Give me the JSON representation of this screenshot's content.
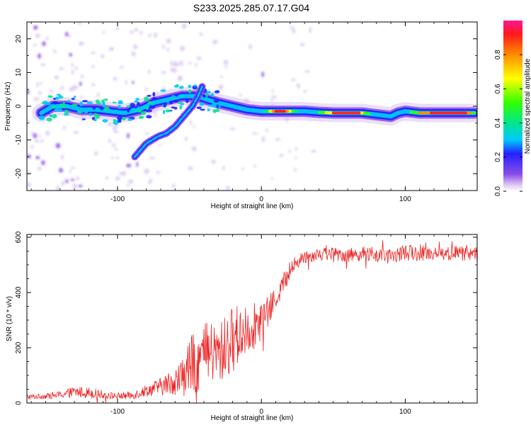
{
  "title": "S233.2025.285.07.17.G04",
  "chart_data": [
    {
      "type": "heatmap",
      "name": "spectrogram",
      "xlabel": "Height of straight line (km)",
      "ylabel": "Frequency (Hz)",
      "xlim": [
        -163,
        150
      ],
      "ylim": [
        -25,
        25
      ],
      "xticks": [
        -100,
        0,
        100
      ],
      "yticks": [
        -20,
        -10,
        0,
        10,
        20
      ],
      "grid": false,
      "ridge": {
        "x": [
          -153,
          -145,
          -135,
          -125,
          -115,
          -105,
          -95,
          -85,
          -75,
          -65,
          -55,
          -45,
          -38,
          -30,
          -20,
          -10,
          0,
          10,
          20,
          30,
          40,
          50,
          60,
          70,
          80,
          90,
          95,
          100,
          110,
          120,
          130,
          140,
          148
        ],
        "y": [
          -2,
          0,
          0,
          -1,
          -1,
          -1.5,
          -2,
          -1,
          1,
          2,
          3,
          3,
          2,
          1,
          0,
          -1,
          -1.5,
          -1.5,
          -1.5,
          -1.5,
          -1.8,
          -2,
          -2,
          -2,
          -2.5,
          -3,
          -2,
          -1.5,
          -2,
          -2,
          -2,
          -2,
          -2
        ]
      },
      "branch": {
        "x": [
          -88,
          -80,
          -72,
          -66,
          -60,
          -54,
          -48,
          -44,
          -41
        ],
        "y": [
          -15,
          -11,
          -9,
          -8,
          -6,
          -3,
          0,
          3,
          6
        ]
      },
      "colorbar": {
        "label": "Normalized spectral amplitude",
        "range": [
          0,
          1
        ],
        "ticks": [
          "0.0",
          "0.2",
          "0.4",
          "0.6",
          "0.8"
        ],
        "tick_values": [
          0.0,
          0.2,
          0.4,
          0.6,
          0.8
        ],
        "colors": [
          "#ffffff",
          "#d9c4f2",
          "#8a4ce6",
          "#2222ff",
          "#00c8ff",
          "#00e68c",
          "#33ff00",
          "#ffff00",
          "#ff8c00",
          "#ff1a1a",
          "#ff1493"
        ]
      }
    },
    {
      "type": "line",
      "name": "snr",
      "xlabel": "Height of straight line (km)",
      "ylabel": "SNR (10 * v/v)",
      "xlim": [
        -163,
        150
      ],
      "ylim": [
        0,
        610
      ],
      "xticks": [
        -100,
        0,
        100
      ],
      "yticks": [
        0,
        200,
        400,
        600
      ],
      "grid": false,
      "color": "#ee2222",
      "envelope": {
        "x": [
          -163,
          -150,
          -140,
          -130,
          -120,
          -110,
          -100,
          -90,
          -80,
          -70,
          -60,
          -55,
          -50,
          -45,
          -40,
          -35,
          -30,
          -25,
          -20,
          -15,
          -10,
          -5,
          0,
          5,
          10,
          15,
          20,
          25,
          30,
          40,
          50,
          60,
          70,
          80,
          90,
          100,
          110,
          120,
          130,
          140,
          150
        ],
        "mean": [
          22,
          25,
          30,
          40,
          38,
          30,
          25,
          28,
          45,
          60,
          80,
          95,
          130,
          155,
          170,
          180,
          175,
          200,
          230,
          250,
          270,
          280,
          300,
          330,
          380,
          430,
          480,
          510,
          530,
          540,
          540,
          535,
          540,
          535,
          530,
          545,
          540,
          545,
          540,
          545,
          540
        ],
        "noise": [
          10,
          10,
          14,
          20,
          20,
          14,
          12,
          15,
          22,
          32,
          50,
          70,
          100,
          120,
          120,
          110,
          110,
          120,
          120,
          110,
          95,
          85,
          70,
          55,
          45,
          40,
          30,
          25,
          25,
          25,
          25,
          25,
          25,
          30,
          25,
          30,
          25,
          30,
          25,
          30,
          25
        ]
      }
    }
  ]
}
